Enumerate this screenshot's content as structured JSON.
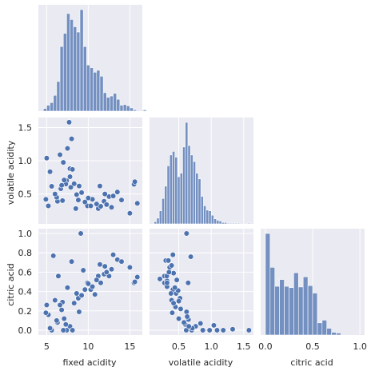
{
  "chart_data": {
    "type": "pairplot",
    "style": "seaborn darkgrid, corner pairplot",
    "grid": true,
    "colors": {
      "background": "#eaeaf2",
      "grid": "#ffffff",
      "marker": "#4c72b0",
      "marker_edge": "#ffffff",
      "text": "#262626"
    },
    "variables": [
      "fixed acidity",
      "volatile acidity",
      "citric acid"
    ],
    "ranges": {
      "fixed acidity": [
        4.0,
        16.5
      ],
      "volatile acidity": [
        0.05,
        1.65
      ],
      "citric acid": [
        -0.05,
        1.05
      ]
    },
    "ticks": {
      "fixed acidity": [
        5,
        10,
        15
      ],
      "volatile acidity": [
        0.5,
        1.0,
        1.5
      ],
      "citric acid": [
        0.0,
        0.2,
        0.4,
        0.6,
        0.8,
        1.0
      ],
      "citric acid_x": [
        0.0,
        0.5,
        1.0
      ]
    },
    "histograms": {
      "fixed acidity": {
        "bin_start": 4.6,
        "bin_width": 0.4,
        "counts": [
          4,
          9,
          13,
          24,
          45,
          98,
          118,
          148,
          139,
          128,
          120,
          154,
          98,
          70,
          66,
          59,
          62,
          53,
          28,
          21,
          23,
          27,
          18,
          9,
          10,
          8,
          5,
          2,
          1,
          1,
          2
        ]
      },
      "volatile acidity": {
        "bin_start": 0.12,
        "bin_width": 0.04,
        "counts": [
          3,
          8,
          18,
          35,
          52,
          80,
          95,
          100,
          92,
          65,
          70,
          106,
          140,
          108,
          95,
          86,
          70,
          62,
          38,
          25,
          19,
          18,
          12,
          7,
          5,
          4,
          2,
          2,
          1,
          1,
          1,
          1,
          1,
          0,
          0,
          0,
          1
        ]
      },
      "citric acid": {
        "bin_start": 0.0,
        "bin_width": 0.05,
        "counts": [
          150,
          100,
          72,
          82,
          72,
          70,
          92,
          71,
          86,
          73,
          62,
          18,
          22,
          10,
          4,
          3,
          0,
          0,
          0,
          0,
          1
        ]
      }
    },
    "scatter": {
      "volatile acidity vs fixed acidity": {
        "x": "fixed acidity",
        "y": "volatile acidity",
        "points": [
          [
            7.4,
            0.7
          ],
          [
            7.8,
            0.88
          ],
          [
            7.8,
            0.76
          ],
          [
            11.2,
            0.28
          ],
          [
            7.9,
            0.6
          ],
          [
            8.5,
            0.28
          ],
          [
            6.7,
            0.58
          ],
          [
            5.6,
            0.615
          ],
          [
            6.3,
            0.39
          ],
          [
            9.9,
            0.32
          ],
          [
            8.9,
            0.62
          ],
          [
            10.3,
            0.32
          ],
          [
            12.5,
            0.46
          ],
          [
            11.5,
            0.315
          ],
          [
            7.0,
            0.975
          ],
          [
            6.2,
            0.45
          ],
          [
            8.1,
            0.87
          ],
          [
            5.2,
            0.32
          ],
          [
            4.9,
            0.42
          ],
          [
            8.8,
            0.41
          ],
          [
            15.5,
            0.645
          ],
          [
            15.6,
            0.685
          ],
          [
            15.9,
            0.36
          ],
          [
            15.0,
            0.21
          ],
          [
            13.5,
            0.53
          ],
          [
            12.8,
            0.3
          ],
          [
            10.5,
            0.42
          ],
          [
            9.2,
            0.52
          ],
          [
            7.3,
            0.65
          ],
          [
            7.1,
            0.71
          ],
          [
            6.8,
            0.63
          ],
          [
            6.9,
            0.4
          ],
          [
            8.3,
            0.655
          ],
          [
            8.6,
            0.49
          ],
          [
            9.6,
            0.38
          ],
          [
            10.0,
            0.44
          ],
          [
            11.0,
            0.35
          ],
          [
            11.9,
            0.39
          ],
          [
            12.2,
            0.34
          ],
          [
            6.0,
            0.5
          ],
          [
            5.4,
            0.835
          ],
          [
            5.0,
            1.04
          ],
          [
            7.7,
            1.58
          ],
          [
            8.0,
            1.33
          ],
          [
            7.5,
            1.185
          ],
          [
            6.6,
            1.09
          ],
          [
            11.4,
            0.62
          ],
          [
            12.0,
            0.5
          ],
          [
            14.0,
            0.41
          ],
          [
            13.0,
            0.47
          ]
        ]
      },
      "citric acid vs fixed acidity": {
        "x": "fixed acidity",
        "y": "citric acid",
        "points": [
          [
            7.4,
            0.0
          ],
          [
            7.8,
            0.04
          ],
          [
            11.2,
            0.56
          ],
          [
            5.6,
            0.0
          ],
          [
            6.3,
            0.08
          ],
          [
            9.9,
            0.49
          ],
          [
            8.9,
            0.19
          ],
          [
            10.3,
            0.42
          ],
          [
            12.5,
            0.56
          ],
          [
            11.5,
            0.49
          ],
          [
            7.0,
            0.0
          ],
          [
            6.2,
            0.1
          ],
          [
            8.1,
            0.0
          ],
          [
            5.2,
            0.16
          ],
          [
            4.9,
            0.18
          ],
          [
            8.8,
            0.33
          ],
          [
            15.5,
            0.49
          ],
          [
            15.6,
            0.5
          ],
          [
            15.9,
            0.55
          ],
          [
            15.0,
            0.65
          ],
          [
            13.5,
            0.73
          ],
          [
            12.8,
            0.63
          ],
          [
            10.5,
            0.45
          ],
          [
            9.2,
            0.36
          ],
          [
            7.3,
            0.06
          ],
          [
            7.1,
            0.12
          ],
          [
            6.8,
            0.21
          ],
          [
            6.9,
            0.29
          ],
          [
            8.3,
            0.28
          ],
          [
            8.6,
            0.38
          ],
          [
            9.6,
            0.42
          ],
          [
            10.0,
            0.48
          ],
          [
            11.0,
            0.52
          ],
          [
            11.9,
            0.58
          ],
          [
            12.2,
            0.6
          ],
          [
            6.0,
            0.31
          ],
          [
            5.4,
            0.02
          ],
          [
            5.0,
            0.26
          ],
          [
            9.1,
            1.0
          ],
          [
            8.0,
            0.71
          ],
          [
            7.5,
            0.44
          ],
          [
            6.6,
            0.26
          ],
          [
            11.4,
            0.68
          ],
          [
            12.0,
            0.66
          ],
          [
            14.0,
            0.71
          ],
          [
            13.0,
            0.78
          ],
          [
            5.8,
            0.77
          ],
          [
            6.4,
            0.56
          ],
          [
            10.8,
            0.37
          ],
          [
            9.4,
            0.62
          ]
        ]
      },
      "citric acid vs volatile acidity": {
        "x": "volatile acidity",
        "y": "citric acid",
        "points": [
          [
            0.7,
            0.0
          ],
          [
            0.88,
            0.0
          ],
          [
            0.76,
            0.04
          ],
          [
            0.28,
            0.56
          ],
          [
            0.6,
            0.06
          ],
          [
            0.28,
            0.49
          ],
          [
            0.58,
            0.08
          ],
          [
            0.615,
            0.0
          ],
          [
            0.39,
            0.31
          ],
          [
            0.32,
            0.51
          ],
          [
            0.62,
            0.19
          ],
          [
            0.32,
            0.45
          ],
          [
            0.46,
            0.38
          ],
          [
            0.315,
            0.56
          ],
          [
            0.975,
            0.0
          ],
          [
            0.45,
            0.24
          ],
          [
            0.87,
            0.0
          ],
          [
            0.32,
            0.49
          ],
          [
            0.42,
            0.28
          ],
          [
            0.41,
            0.42
          ],
          [
            0.645,
            0.49
          ],
          [
            0.685,
            0.76
          ],
          [
            0.36,
            0.65
          ],
          [
            0.21,
            0.53
          ],
          [
            0.53,
            0.22
          ],
          [
            0.3,
            0.72
          ],
          [
            0.42,
            0.59
          ],
          [
            0.52,
            0.33
          ],
          [
            0.65,
            0.11
          ],
          [
            0.71,
            0.02
          ],
          [
            0.63,
            0.14
          ],
          [
            0.4,
            0.18
          ],
          [
            0.655,
            0.04
          ],
          [
            0.49,
            0.41
          ],
          [
            0.38,
            0.38
          ],
          [
            0.44,
            0.44
          ],
          [
            0.35,
            0.6
          ],
          [
            0.39,
            0.67
          ],
          [
            0.34,
            0.72
          ],
          [
            0.5,
            0.3
          ],
          [
            0.835,
            0.07
          ],
          [
            1.04,
            0.05
          ],
          [
            1.58,
            0.0
          ],
          [
            1.33,
            0.01
          ],
          [
            1.185,
            0.0
          ],
          [
            1.09,
            0.0
          ],
          [
            0.62,
            1.0
          ],
          [
            0.5,
            0.12
          ],
          [
            0.41,
            0.78
          ],
          [
            0.47,
            0.52
          ]
        ]
      }
    }
  }
}
